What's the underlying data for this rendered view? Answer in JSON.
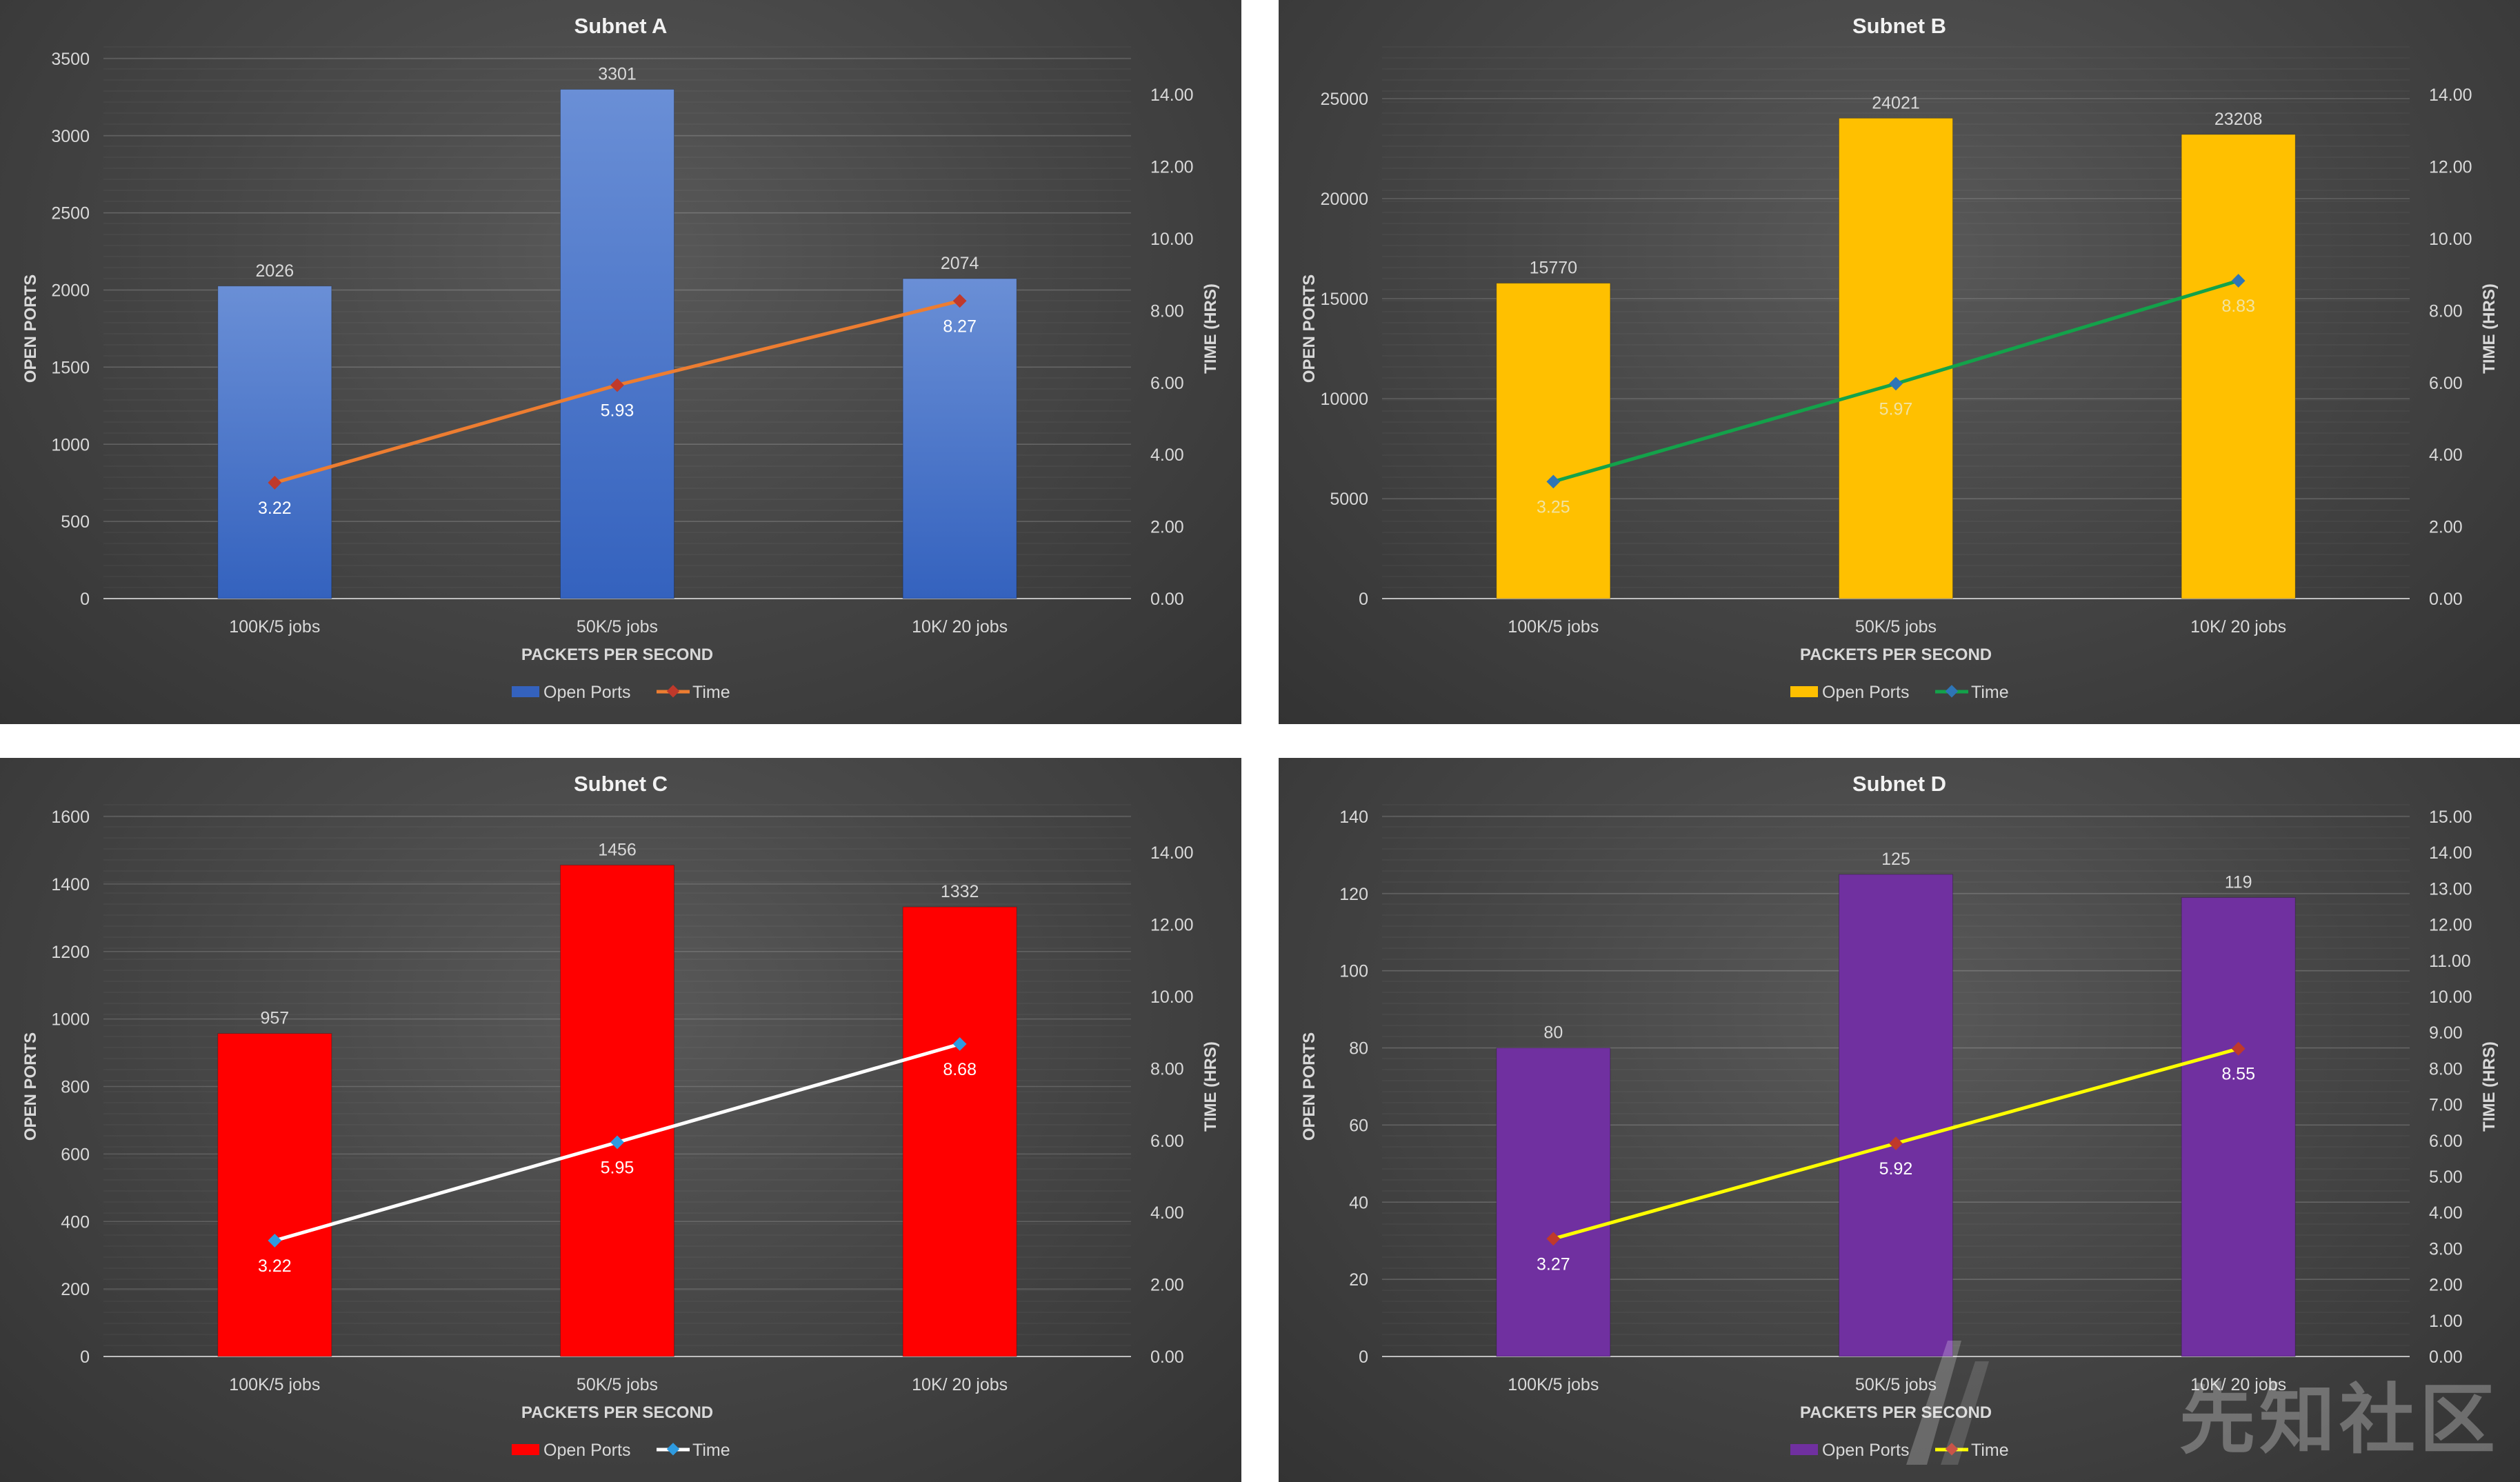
{
  "chart_data": [
    {
      "type": "bar",
      "title": "Subnet A",
      "xlabel": "PACKETS PER SECOND",
      "ylabel": "OPEN PORTS",
      "y2label": "TIME (HRS)",
      "categories": [
        "100K/5 jobs",
        "50K/5 jobs",
        "10K/ 20 jobs"
      ],
      "ylim": [
        0,
        3500
      ],
      "y2lim": [
        0,
        15
      ],
      "yticks": [
        "0",
        "500",
        "1000",
        "1500",
        "2000",
        "2500",
        "3000",
        "3500"
      ],
      "y2ticks": [
        "0.00",
        "2.00",
        "4.00",
        "6.00",
        "8.00",
        "10.00",
        "12.00",
        "14.00"
      ],
      "series": [
        {
          "name": "Open Ports",
          "type": "bar",
          "axis": "left",
          "values": [
            2026,
            3301,
            2074
          ],
          "labels": [
            "2026",
            "3301",
            "2074"
          ]
        },
        {
          "name": "Time",
          "type": "line",
          "axis": "right",
          "values": [
            3.22,
            5.93,
            8.27
          ],
          "labels": [
            "3.22",
            "5.93",
            "8.27"
          ]
        }
      ],
      "colors": {
        "bar_top": "#6a8fd6",
        "bar_bottom": "#3462be",
        "line": "#ed7d31",
        "marker": "#c0392b",
        "line_label": "#ffffff"
      },
      "legend": "bottom",
      "grid": true
    },
    {
      "type": "bar",
      "title": "Subnet B",
      "xlabel": "PACKETS PER SECOND",
      "ylabel": "OPEN PORTS",
      "y2label": "TIME (HRS)",
      "categories": [
        "100K/5 jobs",
        "50K/5 jobs",
        "10K/ 20 jobs"
      ],
      "ylim": [
        0,
        27000
      ],
      "y2lim": [
        0,
        15
      ],
      "yticks": [
        "0",
        "5000",
        "10000",
        "15000",
        "20000",
        "25000"
      ],
      "y2ticks": [
        "0.00",
        "2.00",
        "4.00",
        "6.00",
        "8.00",
        "10.00",
        "12.00",
        "14.00"
      ],
      "series": [
        {
          "name": "Open Ports",
          "type": "bar",
          "axis": "left",
          "values": [
            15770,
            24021,
            23208
          ],
          "labels": [
            "15770",
            "24021",
            "23208"
          ]
        },
        {
          "name": "Time",
          "type": "line",
          "axis": "right",
          "values": [
            3.25,
            5.97,
            8.83
          ],
          "labels": [
            "3.25",
            "5.97",
            "8.83"
          ]
        }
      ],
      "colors": {
        "bar_top": "#ffc000",
        "bar_bottom": "#ffc000",
        "line": "#13a24a",
        "marker": "#2e75b6",
        "line_label": "#f2e3a0"
      },
      "legend": "bottom",
      "grid": true
    },
    {
      "type": "bar",
      "title": "Subnet C",
      "xlabel": "PACKETS PER SECOND",
      "ylabel": "OPEN PORTS",
      "y2label": "TIME (HRS)",
      "categories": [
        "100K/5 jobs",
        "50K/5 jobs",
        "10K/ 20 jobs"
      ],
      "ylim": [
        0,
        1600
      ],
      "y2lim": [
        0,
        15
      ],
      "yticks": [
        "0",
        "200",
        "400",
        "600",
        "800",
        "1000",
        "1200",
        "1400",
        "1600"
      ],
      "y2ticks": [
        "0.00",
        "2.00",
        "4.00",
        "6.00",
        "8.00",
        "10.00",
        "12.00",
        "14.00"
      ],
      "series": [
        {
          "name": "Open Ports",
          "type": "bar",
          "axis": "left",
          "values": [
            957,
            1456,
            1332
          ],
          "labels": [
            "957",
            "1456",
            "1332"
          ]
        },
        {
          "name": "Time",
          "type": "line",
          "axis": "right",
          "values": [
            3.22,
            5.95,
            8.68
          ],
          "labels": [
            "3.22",
            "5.95",
            "8.68"
          ]
        }
      ],
      "colors": {
        "bar_top": "#ff0000",
        "bar_bottom": "#ff0000",
        "line": "#ffffff",
        "marker": "#2e9be0",
        "line_label": "#ffffff"
      },
      "legend": "bottom",
      "grid": true
    },
    {
      "type": "bar",
      "title": "Subnet D",
      "xlabel": "PACKETS PER SECOND",
      "ylabel": "OPEN PORTS",
      "y2label": "TIME (HRS)",
      "categories": [
        "100K/5 jobs",
        "50K/5 jobs",
        "10K/ 20 jobs"
      ],
      "ylim": [
        0,
        140
      ],
      "y2lim": [
        0,
        15
      ],
      "yticks": [
        "0",
        "20",
        "40",
        "60",
        "80",
        "100",
        "120",
        "140"
      ],
      "y2ticks": [
        "0.00",
        "1.00",
        "2.00",
        "3.00",
        "4.00",
        "5.00",
        "6.00",
        "7.00",
        "8.00",
        "9.00",
        "10.00",
        "11.00",
        "12.00",
        "13.00",
        "14.00",
        "15.00"
      ],
      "series": [
        {
          "name": "Open Ports",
          "type": "bar",
          "axis": "left",
          "values": [
            80,
            125,
            119
          ],
          "labels": [
            "80",
            "125",
            "119"
          ]
        },
        {
          "name": "Time",
          "type": "line",
          "axis": "right",
          "values": [
            3.27,
            5.92,
            8.55
          ],
          "labels": [
            "3.27",
            "5.92",
            "8.55"
          ]
        }
      ],
      "colors": {
        "bar_top": "#7030a0",
        "bar_bottom": "#7030a0",
        "line": "#ffff00",
        "marker": "#c0392b",
        "line_label": "#ffffff"
      },
      "legend": "bottom",
      "grid": true
    }
  ],
  "watermark": "先知社区"
}
